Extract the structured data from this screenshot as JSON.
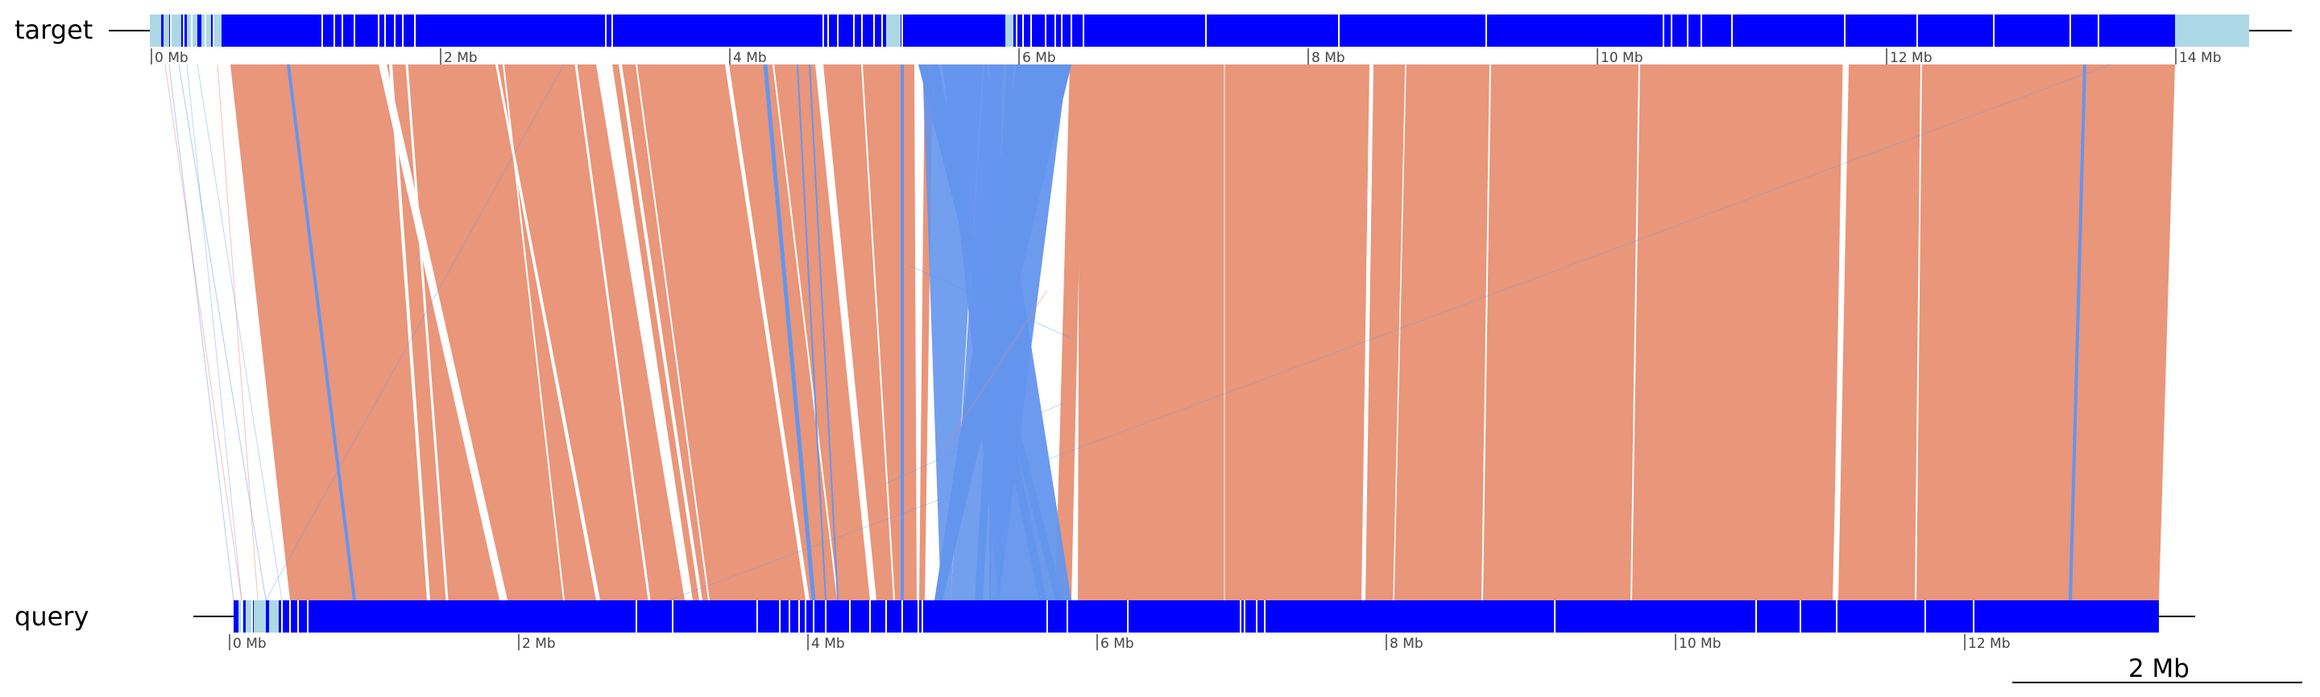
{
  "tracks": {
    "target": {
      "label": "target"
    },
    "query": {
      "label": "query"
    }
  },
  "axes": {
    "target_ticks": [
      "0 Mb",
      "2 Mb",
      "4 Mb",
      "6 Mb",
      "8 Mb",
      "10 Mb",
      "12 Mb",
      "14 Mb"
    ],
    "query_ticks": [
      "0 Mb",
      "2 Mb",
      "4 Mb",
      "6 Mb",
      "8 Mb",
      "10 Mb",
      "12 Mb"
    ]
  },
  "scalebar": {
    "label": "2 Mb"
  },
  "colors": {
    "forward": "#e9967a",
    "reverse": "#6495ed",
    "aligned": "#0000ff",
    "unaligned": "#add8e6",
    "axis": "#000000"
  }
}
